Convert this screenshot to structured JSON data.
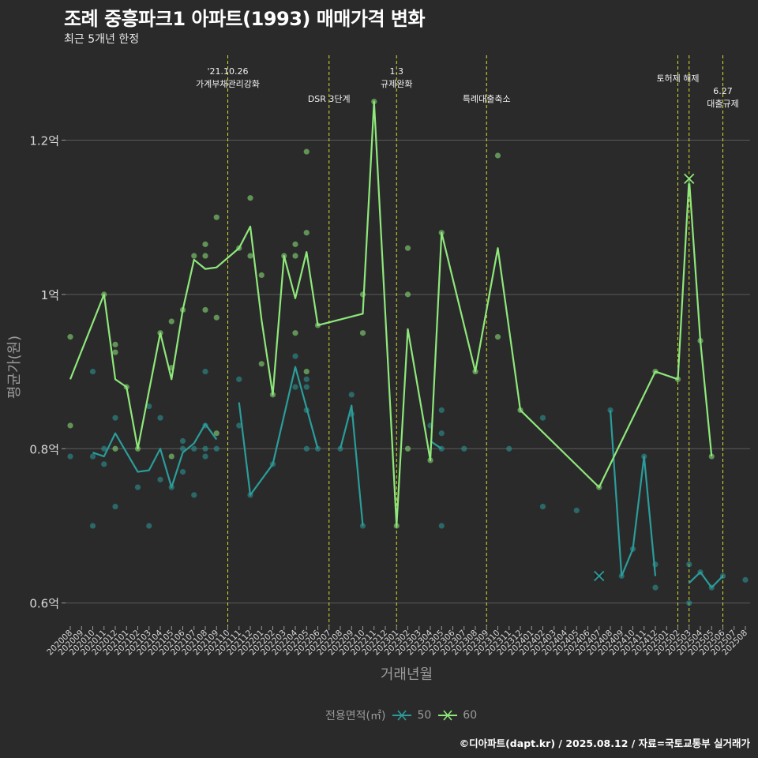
{
  "title": "조례 중흥파크1 아파트(1993) 매매가격 변화",
  "subtitle": "최근 5개년 한정",
  "caption": "©디아파트(dapt.kr) / 2025.08.12 / 자료=국토교통부 실거래가",
  "colors": {
    "background": "#2b2a2b",
    "grid": "#5a5a5a",
    "series_50": "#2a9d9a",
    "series_60": "#8ee87a",
    "event_line": "#d6e02a"
  },
  "chart_data": {
    "type": "line",
    "xlabel": "거래년월",
    "ylabel": "평균가(원)",
    "ylim": [
      0.57,
      1.31
    ],
    "y_ticks": [
      {
        "value": 0.6,
        "label": "0.6억"
      },
      {
        "value": 0.8,
        "label": "0.8억"
      },
      {
        "value": 1.0,
        "label": "1억"
      },
      {
        "value": 1.2,
        "label": "1.2억"
      }
    ],
    "x_ticks": [
      "202008",
      "202009",
      "202010",
      "202011",
      "202012",
      "202101",
      "202102",
      "202103",
      "202104",
      "202105",
      "202106",
      "202107",
      "202108",
      "202109",
      "202110",
      "202111",
      "202112",
      "202201",
      "202202",
      "202203",
      "202204",
      "202205",
      "202206",
      "202207",
      "202208",
      "202209",
      "202210",
      "202211",
      "202212",
      "202301",
      "202302",
      "202303",
      "202304",
      "202305",
      "202306",
      "202307",
      "202308",
      "202309",
      "202310",
      "202311",
      "202312",
      "202401",
      "202402",
      "202403",
      "202404",
      "202405",
      "202406",
      "202407",
      "202408",
      "202409",
      "202410",
      "202411",
      "202412",
      "202501",
      "202502",
      "202503",
      "202504",
      "202505",
      "202506",
      "202507",
      "202508"
    ],
    "legend_title": "전용면적(㎡)",
    "events": [
      {
        "x": "202110",
        "labels": [
          "'21.10.26",
          "가계부채관리강화"
        ],
        "row": 0
      },
      {
        "x": "202207",
        "labels": [
          "DSR 3단계"
        ],
        "row": 2
      },
      {
        "x": "202301",
        "labels": [
          "1.3",
          "규제완화"
        ],
        "row": 0
      },
      {
        "x": "202309",
        "labels": [
          "특례대출축소"
        ],
        "row": 2
      },
      {
        "x": "202502",
        "labels": [
          "토허제 해제"
        ],
        "row": 1
      },
      {
        "x": "202503",
        "labels": [],
        "row": 1
      },
      {
        "x": "202506",
        "labels": [
          "6.27",
          "대출규제"
        ],
        "row": 2
      }
    ],
    "series": [
      {
        "name": "50",
        "line": [
          [
            "202010",
            0.795
          ],
          [
            "202011",
            0.79
          ],
          [
            "202012",
            0.82
          ],
          [
            "202101",
            0.795
          ],
          [
            "202102",
            0.77
          ],
          [
            "202103",
            0.772
          ],
          [
            "202104",
            0.8
          ],
          [
            "202105",
            0.75
          ],
          [
            "202106",
            0.795
          ],
          [
            "202107",
            0.807
          ],
          [
            "202108",
            0.832
          ],
          [
            "202109",
            0.812
          ],
          null,
          [
            "202111",
            0.86
          ],
          [
            "202112",
            0.74
          ],
          [
            "202202",
            0.78
          ],
          [
            "202204",
            0.906
          ],
          [
            "202206",
            0.8
          ],
          null,
          [
            "202208",
            0.8
          ],
          [
            "202209",
            0.856
          ],
          [
            "202210",
            0.7
          ],
          null,
          [
            "202304",
            0.81
          ],
          [
            "202305",
            0.8
          ],
          null,
          [
            "202408",
            0.85
          ],
          [
            "202409",
            0.635
          ],
          [
            "202410",
            0.67
          ],
          [
            "202411",
            0.79
          ],
          [
            "202412",
            0.635
          ],
          null,
          [
            "202503",
            0.626
          ],
          [
            "202504",
            0.64
          ],
          [
            "202505",
            0.62
          ],
          [
            "202506",
            0.635
          ]
        ],
        "points": [
          [
            "202008",
            0.79
          ],
          [
            "202010",
            0.9
          ],
          [
            "202010",
            0.79
          ],
          [
            "202010",
            0.7
          ],
          [
            "202011",
            0.8
          ],
          [
            "202011",
            0.78
          ],
          [
            "202012",
            0.84
          ],
          [
            "202012",
            0.725
          ],
          [
            "202102",
            0.75
          ],
          [
            "202103",
            0.855
          ],
          [
            "202103",
            0.7
          ],
          [
            "202104",
            0.84
          ],
          [
            "202104",
            0.76
          ],
          [
            "202105",
            0.75
          ],
          [
            "202106",
            0.81
          ],
          [
            "202106",
            0.8
          ],
          [
            "202106",
            0.77
          ],
          [
            "202107",
            0.8
          ],
          [
            "202107",
            0.74
          ],
          [
            "202108",
            0.83
          ],
          [
            "202108",
            0.8
          ],
          [
            "202108",
            0.79
          ],
          [
            "202108",
            0.9
          ],
          [
            "202109",
            0.8
          ],
          [
            "202111",
            0.89
          ],
          [
            "202111",
            0.83
          ],
          [
            "202112",
            0.74
          ],
          [
            "202202",
            0.78
          ],
          [
            "202204",
            0.92
          ],
          [
            "202204",
            0.88
          ],
          [
            "202205",
            0.89
          ],
          [
            "202205",
            0.88
          ],
          [
            "202205",
            0.85
          ],
          [
            "202205",
            0.8
          ],
          [
            "202206",
            0.8
          ],
          [
            "202208",
            0.8
          ],
          [
            "202209",
            0.87
          ],
          [
            "202209",
            0.845
          ],
          [
            "202210",
            0.7
          ],
          [
            "202304",
            0.83
          ],
          [
            "202305",
            0.85
          ],
          [
            "202305",
            0.82
          ],
          [
            "202305",
            0.8
          ],
          [
            "202305",
            0.7
          ],
          [
            "202307",
            0.8
          ],
          [
            "202311",
            0.8
          ],
          [
            "202402",
            0.84
          ],
          [
            "202402",
            0.725
          ],
          [
            "202405",
            0.72
          ],
          [
            "202408",
            0.85
          ],
          [
            "202409",
            0.635
          ],
          [
            "202410",
            0.67
          ],
          [
            "202411",
            0.79
          ],
          [
            "202412",
            0.65
          ],
          [
            "202412",
            0.62
          ],
          [
            "202503",
            0.65
          ],
          [
            "202503",
            0.6
          ],
          [
            "202504",
            0.64
          ],
          [
            "202505",
            0.62
          ],
          [
            "202506",
            0.635
          ],
          [
            "202508",
            0.63
          ]
        ],
        "cross": [
          "202407",
          0.635
        ]
      },
      {
        "name": "60",
        "line": [
          [
            "202008",
            0.89
          ],
          [
            "202011",
            1.0
          ],
          [
            "202012",
            0.89
          ],
          [
            "202101",
            0.88
          ],
          [
            "202102",
            0.8
          ],
          [
            "202104",
            0.95
          ],
          [
            "202105",
            0.89
          ],
          [
            "202106",
            0.98
          ],
          [
            "202107",
            1.045
          ],
          [
            "202108",
            1.033
          ],
          [
            "202109",
            1.035
          ],
          [
            "202111",
            1.06
          ],
          [
            "202112",
            1.088
          ],
          [
            "202201",
            0.967
          ],
          [
            "202202",
            0.87
          ],
          [
            "202203",
            1.05
          ],
          [
            "202204",
            0.995
          ],
          [
            "202205",
            1.055
          ],
          [
            "202206",
            0.96
          ],
          [
            "202210",
            0.975
          ],
          [
            "202211",
            1.25
          ],
          [
            "202301",
            0.7
          ],
          [
            "202302",
            0.955
          ],
          [
            "202304",
            0.785
          ],
          [
            "202305",
            1.08
          ],
          [
            "202308",
            0.9
          ],
          [
            "202310",
            1.06
          ],
          [
            "202312",
            0.85
          ],
          [
            "202407",
            0.75
          ],
          [
            "202412",
            0.9
          ],
          [
            "202502",
            0.89
          ],
          [
            "202503",
            1.15
          ],
          [
            "202504",
            0.94
          ],
          [
            "202505",
            0.79
          ]
        ],
        "points": [
          [
            "202008",
            0.945
          ],
          [
            "202008",
            0.83
          ],
          [
            "202011",
            1.0
          ],
          [
            "202012",
            0.935
          ],
          [
            "202012",
            0.925
          ],
          [
            "202012",
            0.8
          ],
          [
            "202101",
            0.88
          ],
          [
            "202102",
            0.8
          ],
          [
            "202104",
            0.95
          ],
          [
            "202105",
            0.965
          ],
          [
            "202105",
            0.905
          ],
          [
            "202105",
            0.79
          ],
          [
            "202106",
            0.98
          ],
          [
            "202107",
            1.05
          ],
          [
            "202108",
            1.065
          ],
          [
            "202108",
            1.05
          ],
          [
            "202108",
            0.98
          ],
          [
            "202109",
            1.1
          ],
          [
            "202109",
            0.97
          ],
          [
            "202109",
            0.82
          ],
          [
            "202111",
            1.06
          ],
          [
            "202112",
            1.125
          ],
          [
            "202112",
            1.05
          ],
          [
            "202201",
            1.025
          ],
          [
            "202201",
            0.91
          ],
          [
            "202202",
            0.87
          ],
          [
            "202203",
            1.05
          ],
          [
            "202204",
            1.065
          ],
          [
            "202204",
            1.05
          ],
          [
            "202204",
            0.95
          ],
          [
            "202205",
            1.185
          ],
          [
            "202205",
            1.08
          ],
          [
            "202205",
            0.9
          ],
          [
            "202206",
            0.96
          ],
          [
            "202210",
            1.0
          ],
          [
            "202210",
            0.95
          ],
          [
            "202211",
            1.25
          ],
          [
            "202301",
            0.7
          ],
          [
            "202302",
            1.06
          ],
          [
            "202302",
            1.0
          ],
          [
            "202302",
            0.8
          ],
          [
            "202304",
            0.785
          ],
          [
            "202305",
            1.08
          ],
          [
            "202308",
            0.9
          ],
          [
            "202310",
            1.18
          ],
          [
            "202310",
            0.945
          ],
          [
            "202312",
            0.85
          ],
          [
            "202407",
            0.75
          ],
          [
            "202412",
            0.9
          ],
          [
            "202502",
            0.89
          ],
          [
            "202504",
            0.94
          ],
          [
            "202505",
            0.79
          ]
        ],
        "cross": [
          "202503",
          1.15
        ]
      }
    ]
  }
}
